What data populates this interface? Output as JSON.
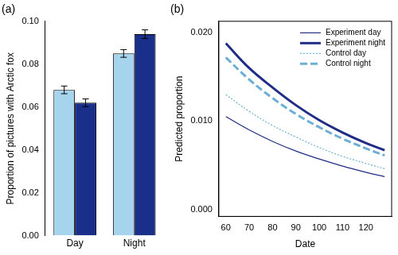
{
  "chart_data": [
    {
      "type": "bar",
      "title": "(a)",
      "ylabel": "Proportion of pictures with Arctic fox",
      "categories": [
        "Day",
        "Night"
      ],
      "series": [
        {
          "color": "#a6d4ec",
          "values": [
            0.068,
            0.085
          ],
          "errors": [
            0.0018,
            0.0018
          ]
        },
        {
          "color": "#1a2f8a",
          "values": [
            0.062,
            0.094
          ],
          "errors": [
            0.0018,
            0.002
          ]
        }
      ],
      "ylim": [
        0,
        0.1
      ],
      "yticks": [
        {
          "value": 0,
          "label": "0.00"
        },
        {
          "value": 0.02,
          "label": "0.02"
        },
        {
          "value": 0.04,
          "label": "0.04"
        },
        {
          "value": 0.06,
          "label": "0.06"
        },
        {
          "value": 0.08,
          "label": "0.08"
        },
        {
          "value": 0.1,
          "label": "0.10"
        }
      ],
      "grid": false
    },
    {
      "type": "line",
      "title": "(b)",
      "xlabel": "Date",
      "ylabel": "Predicted proportion",
      "x": [
        60,
        70,
        80,
        90,
        100,
        110,
        120,
        128
      ],
      "series": [
        {
          "name": "Experiment day",
          "color": "#1f2d86",
          "line_style": "solid",
          "values": [
            0.0105,
            0.009,
            0.0077,
            0.0066,
            0.0057,
            0.0049,
            0.0042,
            0.0037
          ]
        },
        {
          "name": "Experiment night",
          "color": "#1f2d86",
          "line_style": "bold",
          "values": [
            0.0188,
            0.016,
            0.0138,
            0.0118,
            0.0101,
            0.0087,
            0.0075,
            0.0067
          ]
        },
        {
          "name": "Control day",
          "color": "#6baed6",
          "line_style": "dotted",
          "values": [
            0.013,
            0.0111,
            0.0095,
            0.0082,
            0.007,
            0.006,
            0.0052,
            0.0046
          ]
        },
        {
          "name": "Control night",
          "color": "#6baed6",
          "line_style": "bold-dashed",
          "values": [
            0.0172,
            0.0147,
            0.0126,
            0.0108,
            0.0093,
            0.008,
            0.0069,
            0.0061
          ]
        }
      ],
      "xlim": [
        57,
        131
      ],
      "xticks": [
        60,
        70,
        80,
        90,
        100,
        110,
        120
      ],
      "ylim": [
        -0.0008,
        0.0213
      ],
      "yticks": [
        {
          "value": 0,
          "label": "0.000"
        },
        {
          "value": 0.01,
          "label": "0.010"
        },
        {
          "value": 0.02,
          "label": "0.020"
        }
      ],
      "legend": "upper right",
      "grid": false
    }
  ]
}
